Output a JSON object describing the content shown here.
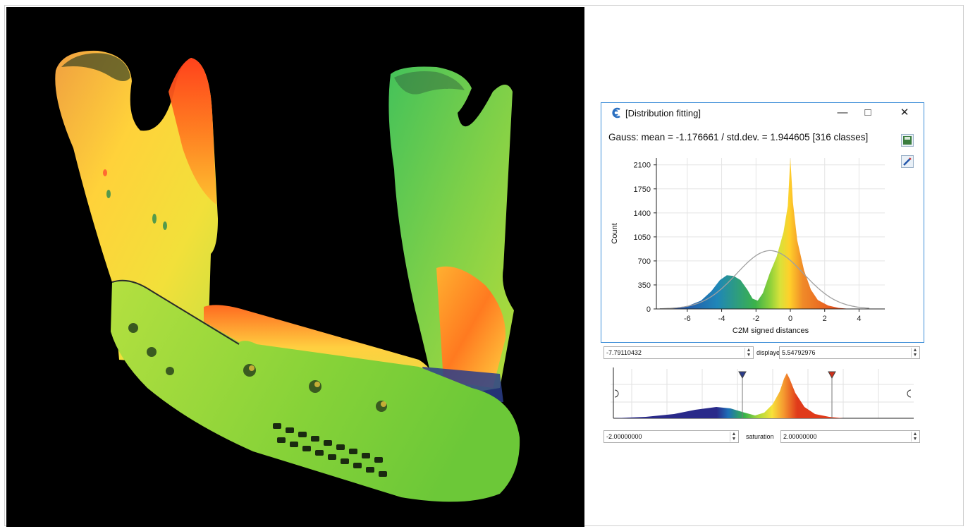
{
  "dialog": {
    "title": "[Distribution fitting]",
    "minimize_icon": "minimize-icon",
    "maximize_icon": "maximize-icon",
    "close_icon": "close-icon",
    "gauss_text": "Gauss: mean = -1.176661 / std.dev. = 1.944605 [316 classes]",
    "accent": "#3d8ed8"
  },
  "chart_data": {
    "type": "area",
    "xlabel": "C2M signed distances",
    "ylabel": "Count",
    "xlim": [
      -7.8,
      5.5
    ],
    "ylim": [
      0,
      2200
    ],
    "x_ticks": [
      -6,
      -4,
      -2,
      0,
      2,
      4
    ],
    "y_ticks": [
      0,
      350,
      700,
      1050,
      1400,
      1750,
      2100
    ],
    "grid": true,
    "series": [
      {
        "kind": "histogram",
        "color_scale": "blue-green-yellow-red",
        "points": [
          [
            -7.6,
            0
          ],
          [
            -6.8,
            10
          ],
          [
            -6,
            40
          ],
          [
            -5.2,
            120
          ],
          [
            -4.6,
            260
          ],
          [
            -4.1,
            420
          ],
          [
            -3.7,
            490
          ],
          [
            -3.3,
            480
          ],
          [
            -2.9,
            420
          ],
          [
            -2.5,
            280
          ],
          [
            -2.2,
            150
          ],
          [
            -1.9,
            120
          ],
          [
            -1.6,
            230
          ],
          [
            -1.2,
            520
          ],
          [
            -0.8,
            760
          ],
          [
            -0.4,
            1120
          ],
          [
            -0.15,
            1500
          ],
          [
            0,
            2200
          ],
          [
            0.15,
            1550
          ],
          [
            0.4,
            1000
          ],
          [
            0.8,
            560
          ],
          [
            1.2,
            280
          ],
          [
            1.6,
            130
          ],
          [
            2.2,
            50
          ],
          [
            2.8,
            15
          ],
          [
            3.5,
            0
          ]
        ]
      },
      {
        "kind": "gauss-fit",
        "color": "#a0a0a0",
        "mean": -1.176661,
        "std": 1.944605,
        "peak": 850
      }
    ]
  },
  "range": {
    "min_value": "-7.79110432",
    "displayed_label": "displayed",
    "max_value": "5.54792976"
  },
  "saturation": {
    "min_value": "-2.00000000",
    "label": "saturation",
    "max_value": "2.00000000"
  }
}
